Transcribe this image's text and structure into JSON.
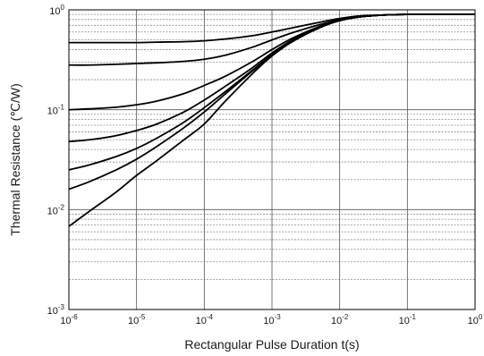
{
  "chart_data": {
    "type": "line",
    "title": "",
    "xlabel": "Rectangular Pulse Duration t(s)",
    "ylabel": "Thermal Resistance (℃/W)",
    "x_scale": "log",
    "y_scale": "log",
    "xlim": [
      1e-06,
      1
    ],
    "ylim": [
      0.001,
      1
    ],
    "x_ticks": [
      {
        "base": "10",
        "exp": "-6",
        "value": 1e-06
      },
      {
        "base": "10",
        "exp": "-5",
        "value": 1e-05
      },
      {
        "base": "10",
        "exp": "-4",
        "value": 0.0001
      },
      {
        "base": "10",
        "exp": "-3",
        "value": 0.001
      },
      {
        "base": "10",
        "exp": "-2",
        "value": 0.01
      },
      {
        "base": "10",
        "exp": "-1",
        "value": 0.1
      },
      {
        "base": "10",
        "exp": "0",
        "value": 1
      }
    ],
    "y_ticks": [
      {
        "base": "10",
        "exp": "-3",
        "value": 0.001
      },
      {
        "base": "10",
        "exp": "-2",
        "value": 0.01
      },
      {
        "base": "10",
        "exp": "-1",
        "value": 0.1
      },
      {
        "base": "10",
        "exp": "0",
        "value": 1
      }
    ],
    "grid": {
      "major_x": true,
      "major_y": true,
      "minor_y": true,
      "minor_y_style": "dashed"
    },
    "line_color": "#000000",
    "x": [
      1e-06,
      2e-06,
      5e-06,
      1e-05,
      2e-05,
      5e-05,
      0.0001,
      0.0002,
      0.0005,
      0.001,
      0.002,
      0.005,
      0.01,
      0.02,
      0.05,
      0.1,
      0.2,
      0.5,
      1
    ],
    "series": [
      {
        "values": [
          0.47,
          0.47,
          0.47,
          0.47,
          0.475,
          0.48,
          0.49,
          0.51,
          0.55,
          0.6,
          0.66,
          0.75,
          0.82,
          0.87,
          0.89,
          0.9,
          0.9,
          0.9,
          0.9
        ]
      },
      {
        "values": [
          0.28,
          0.28,
          0.285,
          0.29,
          0.295,
          0.305,
          0.32,
          0.35,
          0.42,
          0.5,
          0.59,
          0.71,
          0.8,
          0.86,
          0.89,
          0.9,
          0.9,
          0.9,
          0.9
        ]
      },
      {
        "values": [
          0.1,
          0.102,
          0.106,
          0.112,
          0.122,
          0.145,
          0.175,
          0.215,
          0.3,
          0.4,
          0.52,
          0.68,
          0.79,
          0.85,
          0.89,
          0.9,
          0.9,
          0.9,
          0.9
        ]
      },
      {
        "values": [
          0.048,
          0.05,
          0.055,
          0.062,
          0.072,
          0.095,
          0.125,
          0.17,
          0.26,
          0.37,
          0.5,
          0.67,
          0.78,
          0.85,
          0.89,
          0.9,
          0.9,
          0.9,
          0.9
        ]
      },
      {
        "values": [
          0.025,
          0.028,
          0.034,
          0.041,
          0.052,
          0.075,
          0.105,
          0.15,
          0.245,
          0.355,
          0.49,
          0.665,
          0.78,
          0.85,
          0.89,
          0.9,
          0.9,
          0.9,
          0.9
        ]
      },
      {
        "values": [
          0.016,
          0.019,
          0.025,
          0.032,
          0.043,
          0.066,
          0.095,
          0.142,
          0.24,
          0.35,
          0.485,
          0.66,
          0.78,
          0.85,
          0.89,
          0.9,
          0.9,
          0.9,
          0.9
        ]
      },
      {
        "values": [
          0.0068,
          0.0096,
          0.015,
          0.022,
          0.031,
          0.05,
          0.072,
          0.12,
          0.225,
          0.345,
          0.48,
          0.66,
          0.78,
          0.85,
          0.89,
          0.9,
          0.9,
          0.9,
          0.9
        ]
      }
    ]
  }
}
